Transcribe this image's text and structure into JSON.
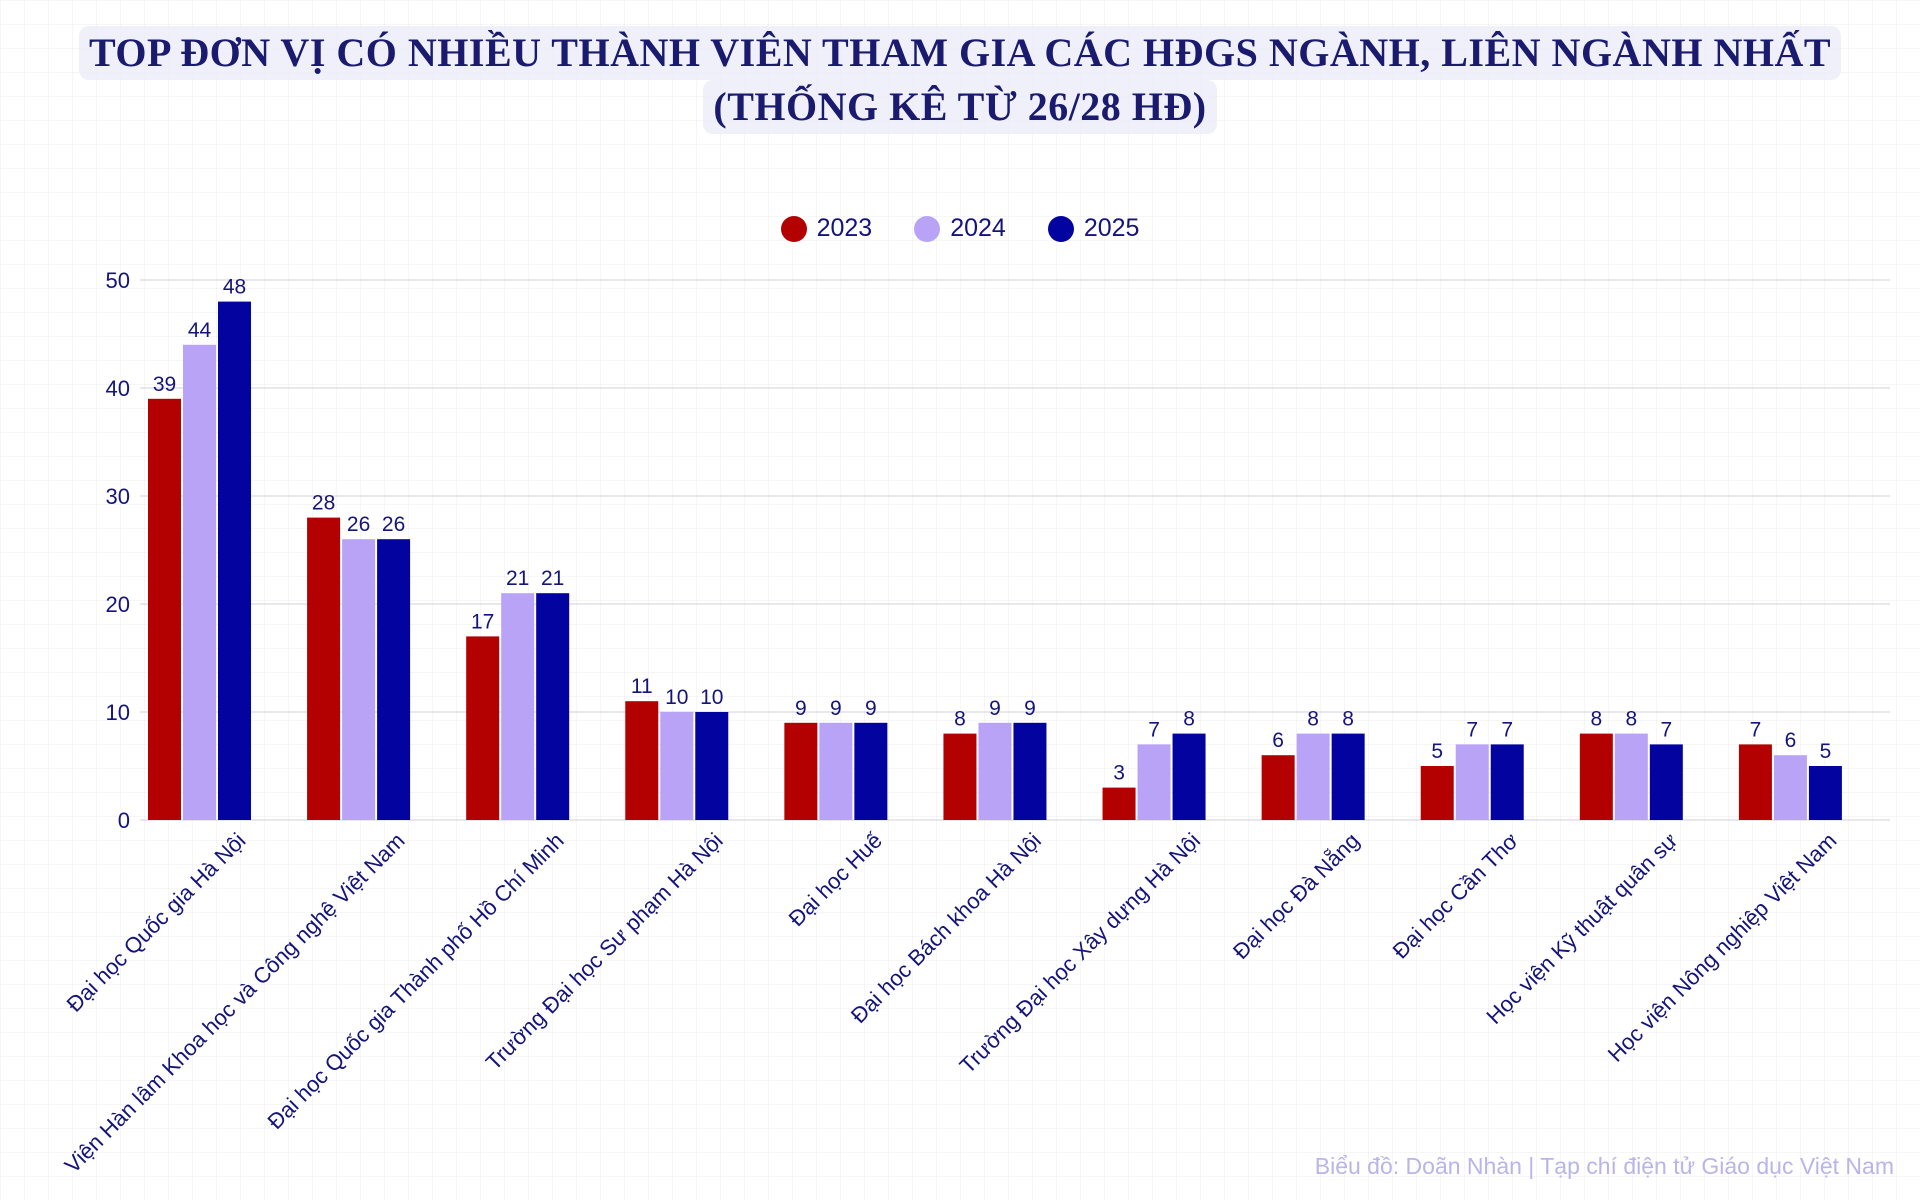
{
  "chart_data": {
    "type": "bar",
    "title": [
      "TOP ĐƠN VỊ CÓ NHIỀU THÀNH VIÊN THAM GIA CÁC HĐGS NGÀNH, LIÊN NGÀNH NHẤT",
      "(THỐNG KÊ TỪ 26/28 HĐ)"
    ],
    "categories": [
      "Đại học Quốc gia Hà Nội",
      "Viện Hàn lâm Khoa học và Công nghệ Việt Nam",
      "Đại học Quốc gia Thành phố Hồ Chí Minh",
      "Trường Đại học Sư phạm Hà Nội",
      "Đại học Huế",
      "Đại học Bách khoa Hà Nội",
      "Trường Đại học Xây dựng Hà Nội",
      "Đại học Đà Nẵng",
      "Đại học Cần Thơ",
      "Học viện Kỹ thuật quân sự",
      "Học viện Nông nghiệp Việt Nam"
    ],
    "series": [
      {
        "name": "2023",
        "color": "#b30000",
        "values": [
          39,
          28,
          17,
          11,
          9,
          8,
          3,
          6,
          5,
          8,
          7
        ]
      },
      {
        "name": "2024",
        "color": "#b8a3f7",
        "values": [
          44,
          26,
          21,
          10,
          9,
          9,
          7,
          8,
          7,
          8,
          6
        ]
      },
      {
        "name": "2025",
        "color": "#0303a0",
        "values": [
          48,
          26,
          21,
          10,
          9,
          9,
          8,
          8,
          7,
          7,
          5
        ]
      }
    ],
    "ylim": [
      0,
      50
    ],
    "yticks": [
      0,
      10,
      20,
      30,
      40,
      50
    ],
    "grid": true,
    "legend_position": "top-center",
    "data_labels": true
  },
  "credit": "Biểu đồ: Doãn Nhàn | Tạp chí điện tử Giáo dục Việt Nam"
}
